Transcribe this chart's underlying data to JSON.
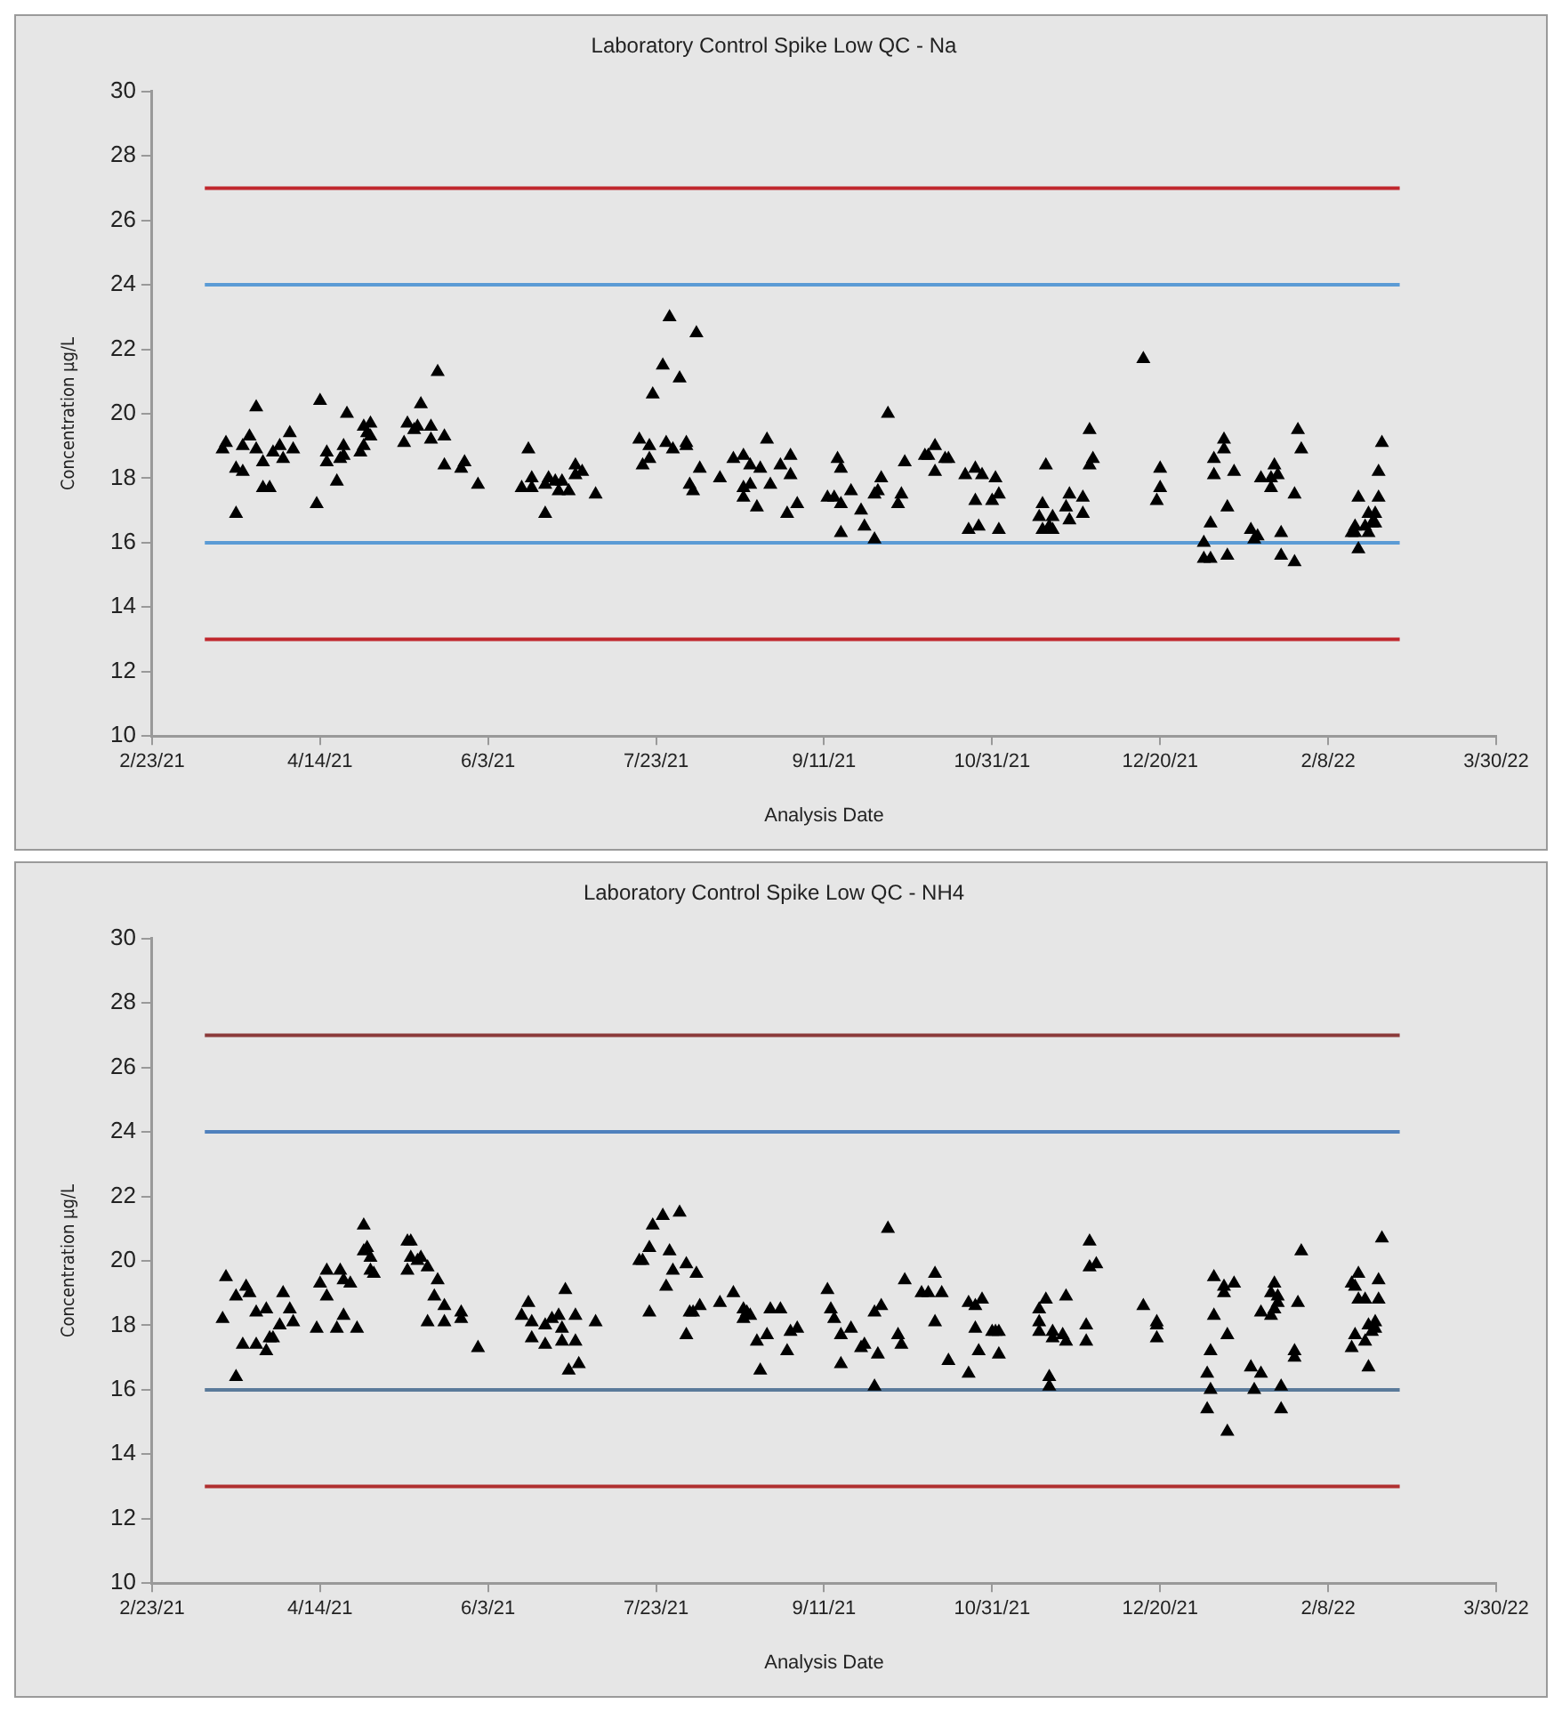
{
  "chart_data": [
    {
      "type": "scatter",
      "title": "Laboratory Control Spike Low QC - Na",
      "xlabel": "Analysis Date",
      "ylabel": "Concentration µg/L",
      "marker": "triangle",
      "legend": false,
      "grid": false,
      "xlim": [
        "2021-02-23",
        "2022-03-30"
      ],
      "xticks": [
        {
          "value": "2021-02-23",
          "label": "2/23/21"
        },
        {
          "value": "2021-04-14",
          "label": "4/14/21"
        },
        {
          "value": "2021-06-03",
          "label": "6/3/21"
        },
        {
          "value": "2021-07-23",
          "label": "7/23/21"
        },
        {
          "value": "2021-09-11",
          "label": "9/11/21"
        },
        {
          "value": "2021-10-31",
          "label": "10/31/21"
        },
        {
          "value": "2021-12-20",
          "label": "12/20/21"
        },
        {
          "value": "2022-02-08",
          "label": "2/8/22"
        },
        {
          "value": "2022-03-30",
          "label": "3/30/22"
        }
      ],
      "ylim": [
        10,
        30
      ],
      "yticks": [
        10,
        12,
        14,
        16,
        18,
        20,
        22,
        24,
        26,
        28,
        30
      ],
      "ref_lines": [
        {
          "axis": "y",
          "value": 27,
          "color": "#c0272d"
        },
        {
          "axis": "y",
          "value": 24,
          "color": "#5b9bd5"
        },
        {
          "axis": "y",
          "value": 16,
          "color": "#5b9bd5"
        },
        {
          "axis": "y",
          "value": 13,
          "color": "#c0272d"
        }
      ],
      "x": [
        "2021-03-16",
        "2021-03-17",
        "2021-03-20",
        "2021-03-20",
        "2021-03-22",
        "2021-03-22",
        "2021-03-24",
        "2021-03-26",
        "2021-03-26",
        "2021-03-28",
        "2021-03-28",
        "2021-03-30",
        "2021-03-31",
        "2021-04-02",
        "2021-04-03",
        "2021-04-05",
        "2021-04-06",
        "2021-04-13",
        "2021-04-14",
        "2021-04-16",
        "2021-04-16",
        "2021-04-19",
        "2021-04-20",
        "2021-04-21",
        "2021-04-21",
        "2021-04-22",
        "2021-04-26",
        "2021-04-27",
        "2021-04-27",
        "2021-04-28",
        "2021-04-29",
        "2021-04-29",
        "2021-05-09",
        "2021-05-10",
        "2021-05-12",
        "2021-05-13",
        "2021-05-14",
        "2021-05-17",
        "2021-05-17",
        "2021-05-19",
        "2021-05-21",
        "2021-05-21",
        "2021-05-26",
        "2021-05-27",
        "2021-05-31",
        "2021-06-13",
        "2021-06-15",
        "2021-06-16",
        "2021-06-16",
        "2021-06-20",
        "2021-06-20",
        "2021-06-21",
        "2021-06-23",
        "2021-06-24",
        "2021-06-25",
        "2021-06-27",
        "2021-06-29",
        "2021-06-29",
        "2021-07-01",
        "2021-07-05",
        "2021-07-18",
        "2021-07-19",
        "2021-07-21",
        "2021-07-21",
        "2021-07-22",
        "2021-07-25",
        "2021-07-26",
        "2021-07-27",
        "2021-07-28",
        "2021-07-30",
        "2021-08-01",
        "2021-08-01",
        "2021-08-02",
        "2021-08-03",
        "2021-08-04",
        "2021-08-05",
        "2021-08-11",
        "2021-08-15",
        "2021-08-18",
        "2021-08-18",
        "2021-08-18",
        "2021-08-20",
        "2021-08-20",
        "2021-08-22",
        "2021-08-23",
        "2021-08-25",
        "2021-08-26",
        "2021-08-29",
        "2021-08-31",
        "2021-09-01",
        "2021-09-01",
        "2021-09-03",
        "2021-09-12",
        "2021-09-14",
        "2021-09-15",
        "2021-09-16",
        "2021-09-16",
        "2021-09-16",
        "2021-09-19",
        "2021-09-22",
        "2021-09-23",
        "2021-09-26",
        "2021-09-26",
        "2021-09-27",
        "2021-09-28",
        "2021-09-30",
        "2021-10-03",
        "2021-10-04",
        "2021-10-05",
        "2021-10-11",
        "2021-10-12",
        "2021-10-14",
        "2021-10-14",
        "2021-10-17",
        "2021-10-18",
        "2021-10-23",
        "2021-10-24",
        "2021-10-26",
        "2021-10-26",
        "2021-10-27",
        "2021-10-28",
        "2021-10-31",
        "2021-11-01",
        "2021-11-02",
        "2021-11-02",
        "2021-11-14",
        "2021-11-15",
        "2021-11-15",
        "2021-11-16",
        "2021-11-17",
        "2021-11-18",
        "2021-11-18",
        "2021-11-22",
        "2021-11-23",
        "2021-11-23",
        "2021-11-27",
        "2021-11-27",
        "2021-11-29",
        "2021-11-29",
        "2021-11-30",
        "2021-12-15",
        "2021-12-19",
        "2021-12-20",
        "2021-12-20",
        "2022-01-02",
        "2022-01-02",
        "2022-01-04",
        "2022-01-04",
        "2022-01-05",
        "2022-01-05",
        "2022-01-08",
        "2022-01-08",
        "2022-01-09",
        "2022-01-09",
        "2022-01-11",
        "2022-01-16",
        "2022-01-17",
        "2022-01-18",
        "2022-01-19",
        "2022-01-22",
        "2022-01-22",
        "2022-01-23",
        "2022-01-24",
        "2022-01-25",
        "2022-01-25",
        "2022-01-29",
        "2022-01-29",
        "2022-01-30",
        "2022-01-31",
        "2022-02-15",
        "2022-02-16",
        "2022-02-16",
        "2022-02-17",
        "2022-02-17",
        "2022-02-19",
        "2022-02-20",
        "2022-02-20",
        "2022-02-21",
        "2022-02-22",
        "2022-02-22",
        "2022-02-23",
        "2022-02-23",
        "2022-02-24"
      ],
      "series": [
        {
          "color": "#000000",
          "values": [
            18.9,
            19.1,
            16.9,
            18.3,
            19.0,
            18.2,
            19.3,
            20.2,
            18.9,
            18.5,
            17.7,
            17.7,
            18.8,
            19.0,
            18.6,
            19.4,
            18.9,
            17.2,
            20.4,
            18.8,
            18.5,
            17.9,
            18.6,
            19.0,
            18.7,
            20.0,
            18.8,
            19.0,
            19.6,
            19.4,
            19.7,
            19.3,
            19.1,
            19.7,
            19.5,
            19.6,
            20.3,
            19.2,
            19.6,
            21.3,
            19.3,
            18.4,
            18.3,
            18.5,
            17.8,
            17.7,
            18.9,
            18.0,
            17.7,
            16.9,
            17.8,
            18.0,
            17.9,
            17.6,
            17.9,
            17.6,
            18.4,
            18.1,
            18.2,
            17.5,
            19.2,
            18.4,
            19.0,
            18.6,
            20.6,
            21.5,
            19.1,
            23.0,
            18.9,
            21.1,
            19.1,
            19.0,
            17.8,
            17.6,
            22.5,
            18.3,
            18.0,
            18.6,
            18.7,
            17.7,
            17.4,
            18.4,
            17.8,
            17.1,
            18.3,
            19.2,
            17.8,
            18.4,
            16.9,
            18.7,
            18.1,
            17.2,
            17.4,
            17.4,
            18.6,
            18.3,
            16.3,
            17.2,
            17.6,
            17.0,
            16.5,
            16.1,
            17.5,
            17.6,
            18.0,
            20.0,
            17.2,
            17.5,
            18.5,
            18.7,
            18.7,
            19.0,
            18.2,
            18.6,
            18.6,
            18.1,
            16.4,
            18.3,
            17.3,
            16.5,
            18.1,
            17.3,
            18.0,
            17.5,
            16.4,
            16.8,
            17.2,
            16.4,
            18.4,
            16.5,
            16.8,
            16.4,
            17.1,
            17.5,
            16.7,
            17.4,
            16.9,
            18.4,
            19.5,
            18.6,
            21.7,
            17.3,
            17.7,
            18.3,
            16.0,
            15.5,
            15.5,
            16.6,
            18.1,
            18.6,
            18.9,
            19.2,
            17.1,
            15.6,
            18.2,
            16.4,
            16.1,
            16.2,
            18.0,
            17.7,
            18.0,
            18.4,
            18.1,
            16.3,
            15.6,
            17.5,
            15.4,
            19.5,
            18.9,
            16.3,
            16.5,
            16.3,
            15.8,
            17.4,
            16.5,
            16.9,
            16.3,
            16.6,
            16.6,
            16.9,
            17.4,
            18.2,
            19.1
          ]
        }
      ]
    },
    {
      "type": "scatter",
      "title": "Laboratory Control Spike Low QC - NH4",
      "xlabel": "Analysis Date",
      "ylabel": "Concentration µg/L",
      "marker": "triangle",
      "legend": false,
      "grid": false,
      "xlim": [
        "2021-02-23",
        "2022-03-30"
      ],
      "xticks": [
        {
          "value": "2021-02-23",
          "label": "2/23/21"
        },
        {
          "value": "2021-04-14",
          "label": "4/14/21"
        },
        {
          "value": "2021-06-03",
          "label": "6/3/21"
        },
        {
          "value": "2021-07-23",
          "label": "7/23/21"
        },
        {
          "value": "2021-09-11",
          "label": "9/11/21"
        },
        {
          "value": "2021-10-31",
          "label": "10/31/21"
        },
        {
          "value": "2021-12-20",
          "label": "12/20/21"
        },
        {
          "value": "2022-02-08",
          "label": "2/8/22"
        },
        {
          "value": "2022-03-30",
          "label": "3/30/22"
        }
      ],
      "ylim": [
        10,
        30
      ],
      "yticks": [
        10,
        12,
        14,
        16,
        18,
        20,
        22,
        24,
        26,
        28,
        30
      ],
      "ref_lines": [
        {
          "axis": "y",
          "value": 27,
          "color": "#8b3a3a"
        },
        {
          "axis": "y",
          "value": 24,
          "color": "#4f81bd"
        },
        {
          "axis": "y",
          "value": 16,
          "color": "#5a7a9a"
        },
        {
          "axis": "y",
          "value": 13,
          "color": "#b03030"
        }
      ],
      "x": [
        "2021-03-16",
        "2021-03-17",
        "2021-03-20",
        "2021-03-20",
        "2021-03-22",
        "2021-03-23",
        "2021-03-24",
        "2021-03-26",
        "2021-03-26",
        "2021-03-29",
        "2021-03-29",
        "2021-03-30",
        "2021-03-31",
        "2021-04-02",
        "2021-04-03",
        "2021-04-05",
        "2021-04-06",
        "2021-04-13",
        "2021-04-14",
        "2021-04-16",
        "2021-04-16",
        "2021-04-19",
        "2021-04-20",
        "2021-04-21",
        "2021-04-21",
        "2021-04-23",
        "2021-04-25",
        "2021-04-27",
        "2021-04-27",
        "2021-04-28",
        "2021-04-29",
        "2021-04-29",
        "2021-04-30",
        "2021-05-10",
        "2021-05-10",
        "2021-05-11",
        "2021-05-11",
        "2021-05-13",
        "2021-05-14",
        "2021-05-16",
        "2021-05-16",
        "2021-05-18",
        "2021-05-19",
        "2021-05-21",
        "2021-05-21",
        "2021-05-26",
        "2021-05-26",
        "2021-05-31",
        "2021-06-13",
        "2021-06-15",
        "2021-06-16",
        "2021-06-16",
        "2021-06-20",
        "2021-06-20",
        "2021-06-22",
        "2021-06-24",
        "2021-06-25",
        "2021-06-25",
        "2021-06-26",
        "2021-06-27",
        "2021-06-29",
        "2021-06-29",
        "2021-06-30",
        "2021-07-05",
        "2021-07-18",
        "2021-07-19",
        "2021-07-21",
        "2021-07-21",
        "2021-07-22",
        "2021-07-25",
        "2021-07-26",
        "2021-07-27",
        "2021-07-28",
        "2021-07-30",
        "2021-08-01",
        "2021-08-01",
        "2021-08-02",
        "2021-08-03",
        "2021-08-04",
        "2021-08-05",
        "2021-08-11",
        "2021-08-15",
        "2021-08-18",
        "2021-08-18",
        "2021-08-19",
        "2021-08-20",
        "2021-08-22",
        "2021-08-23",
        "2021-08-25",
        "2021-08-26",
        "2021-08-29",
        "2021-08-31",
        "2021-09-01",
        "2021-09-03",
        "2021-09-12",
        "2021-09-13",
        "2021-09-14",
        "2021-09-16",
        "2021-09-16",
        "2021-09-19",
        "2021-09-22",
        "2021-09-23",
        "2021-09-26",
        "2021-09-26",
        "2021-09-27",
        "2021-09-28",
        "2021-09-30",
        "2021-10-03",
        "2021-10-04",
        "2021-10-05",
        "2021-10-10",
        "2021-10-12",
        "2021-10-14",
        "2021-10-14",
        "2021-10-16",
        "2021-10-18",
        "2021-10-24",
        "2021-10-24",
        "2021-10-26",
        "2021-10-26",
        "2021-10-27",
        "2021-10-28",
        "2021-10-31",
        "2021-11-01",
        "2021-11-02",
        "2021-11-02",
        "2021-11-14",
        "2021-11-14",
        "2021-11-14",
        "2021-11-16",
        "2021-11-17",
        "2021-11-17",
        "2021-11-18",
        "2021-11-18",
        "2021-11-21",
        "2021-11-22",
        "2021-11-22",
        "2021-11-28",
        "2021-11-28",
        "2021-11-29",
        "2021-11-29",
        "2021-12-01",
        "2021-12-15",
        "2021-12-19",
        "2021-12-19",
        "2021-12-19",
        "2022-01-03",
        "2022-01-03",
        "2022-01-04",
        "2022-01-04",
        "2022-01-05",
        "2022-01-05",
        "2022-01-08",
        "2022-01-08",
        "2022-01-09",
        "2022-01-09",
        "2022-01-11",
        "2022-01-16",
        "2022-01-17",
        "2022-01-19",
        "2022-01-19",
        "2022-01-22",
        "2022-01-22",
        "2022-01-23",
        "2022-01-23",
        "2022-01-24",
        "2022-01-24",
        "2022-01-25",
        "2022-01-25",
        "2022-01-29",
        "2022-01-29",
        "2022-01-30",
        "2022-01-31",
        "2022-02-15",
        "2022-02-15",
        "2022-02-16",
        "2022-02-16",
        "2022-02-17",
        "2022-02-17",
        "2022-02-19",
        "2022-02-19",
        "2022-02-20",
        "2022-02-20",
        "2022-02-21",
        "2022-02-22",
        "2022-02-22",
        "2022-02-23",
        "2022-02-23",
        "2022-02-24"
      ],
      "series": [
        {
          "color": "#000000",
          "values": [
            18.2,
            19.5,
            16.4,
            18.9,
            17.4,
            19.2,
            19.0,
            17.4,
            18.4,
            17.2,
            18.5,
            17.6,
            17.6,
            18.0,
            19.0,
            18.5,
            18.1,
            17.9,
            19.3,
            18.9,
            19.7,
            17.9,
            19.7,
            18.3,
            19.4,
            19.3,
            17.9,
            21.1,
            20.3,
            20.4,
            20.1,
            19.7,
            19.6,
            19.7,
            20.6,
            20.6,
            20.1,
            20.0,
            20.1,
            19.8,
            18.1,
            18.9,
            19.4,
            18.6,
            18.1,
            18.4,
            18.2,
            17.3,
            18.3,
            18.7,
            18.1,
            17.6,
            17.4,
            18.0,
            18.2,
            18.3,
            17.9,
            17.5,
            19.1,
            16.6,
            18.3,
            17.5,
            16.8,
            18.1,
            20.0,
            20.0,
            18.4,
            20.4,
            21.1,
            21.4,
            19.2,
            20.3,
            19.7,
            21.5,
            19.9,
            17.7,
            18.4,
            18.4,
            19.6,
            18.6,
            18.7,
            19.0,
            18.5,
            18.2,
            18.4,
            18.3,
            17.5,
            16.6,
            17.7,
            18.5,
            18.5,
            17.2,
            17.8,
            17.9,
            19.1,
            18.5,
            18.2,
            17.7,
            16.8,
            17.9,
            17.3,
            17.4,
            18.4,
            16.1,
            17.1,
            18.6,
            21.0,
            17.7,
            17.4,
            19.4,
            19.0,
            19.0,
            19.6,
            18.1,
            19.0,
            16.9,
            16.5,
            18.7,
            18.6,
            17.9,
            17.2,
            18.8,
            17.8,
            17.8,
            17.8,
            17.1,
            18.5,
            18.1,
            17.8,
            18.8,
            16.4,
            16.1,
            17.6,
            17.8,
            17.7,
            17.5,
            18.9,
            17.5,
            18.0,
            19.8,
            20.6,
            19.9,
            18.6,
            18.0,
            18.1,
            17.6,
            16.5,
            15.4,
            17.2,
            16.0,
            18.3,
            19.5,
            19.2,
            19.0,
            17.7,
            14.7,
            19.3,
            16.7,
            16.0,
            16.5,
            18.4,
            18.3,
            19.0,
            19.3,
            18.5,
            18.9,
            18.7,
            16.1,
            15.4,
            17.2,
            17.0,
            18.7,
            20.3,
            17.3,
            19.3,
            17.7,
            19.2,
            19.6,
            18.8,
            18.8,
            17.5,
            16.7,
            18.0,
            17.8,
            18.1,
            17.9,
            19.4,
            18.8,
            20.7
          ]
        }
      ]
    }
  ]
}
